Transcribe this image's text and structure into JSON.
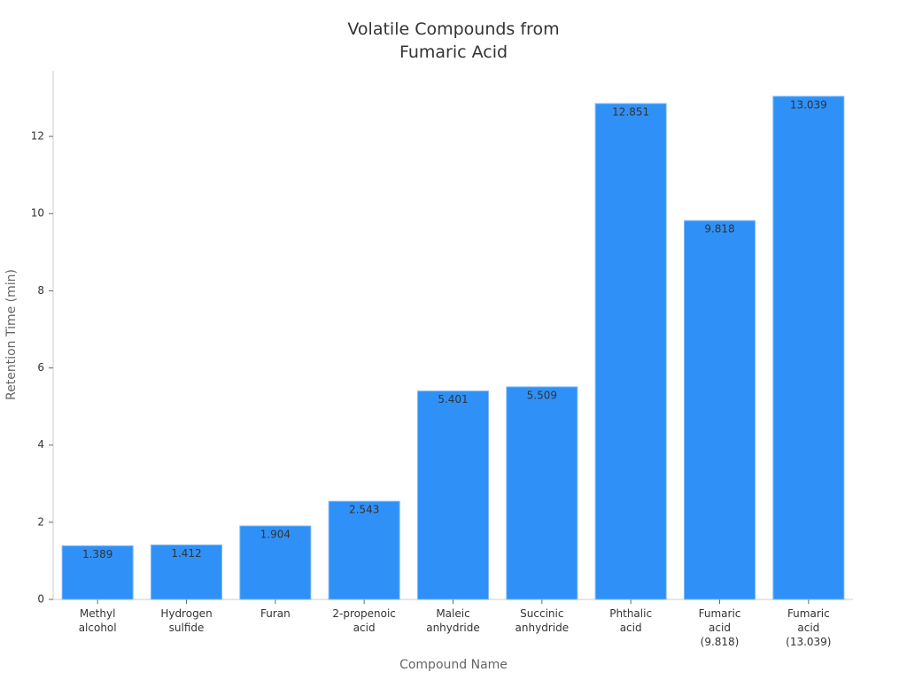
{
  "chart_data": {
    "type": "bar",
    "title": "Volatile Compounds from Fumaric Acid",
    "x_label": "Compound Name",
    "y_label": "Retention Time (min)",
    "categories": [
      "Methyl alcohol",
      "Hydrogen sulfide",
      "Furan",
      "2-propenoic acid",
      "Maleic anhydride",
      "Succinic anhydride",
      "Phthalic acid",
      "Fumaric acid (9.818)",
      "Fumaric acid (13.039)"
    ],
    "values": [
      1.389,
      1.412,
      1.904,
      2.543,
      5.401,
      5.509,
      12.851,
      9.818,
      13.039
    ],
    "color": "#2f91f7",
    "ylim": [
      0,
      13.7
    ],
    "yticks": [
      0,
      2,
      4,
      6,
      8,
      10,
      12
    ],
    "grid": false
  }
}
